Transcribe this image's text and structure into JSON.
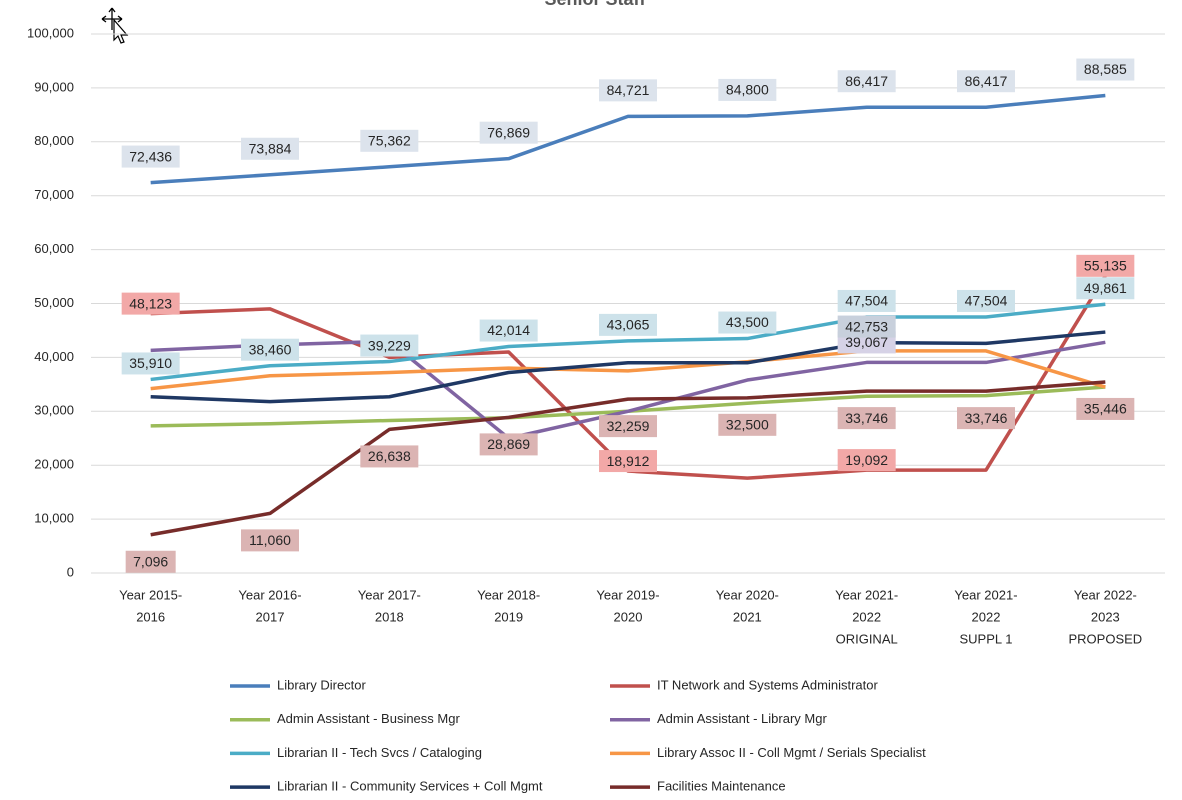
{
  "chart_data": {
    "type": "line",
    "title": "Senior Staff",
    "categories": [
      [
        "Year 2015-",
        "2016"
      ],
      [
        "Year 2016-",
        "2017"
      ],
      [
        "Year 2017-",
        "2018"
      ],
      [
        "Year 2018-",
        "2019"
      ],
      [
        "Year 2019-",
        "2020"
      ],
      [
        "Year 2020-",
        "2021"
      ],
      [
        "Year 2021-",
        "2022",
        "ORIGINAL"
      ],
      [
        "Year 2021-",
        "2022",
        "SUPPL 1"
      ],
      [
        "Year 2022-",
        "2023",
        "PROPOSED"
      ]
    ],
    "ylim": [
      0,
      100000
    ],
    "yticks": [
      0,
      {
        "value": 10000,
        "label": "10,000"
      },
      {
        "value": 20000,
        "label": "20,000"
      },
      {
        "value": 30000,
        "label": "30,000"
      },
      {
        "value": 40000,
        "label": "40,000"
      },
      {
        "value": 50000,
        "label": "50,000"
      },
      {
        "value": 60000,
        "label": "60,000"
      },
      {
        "value": 70000,
        "label": "70,000"
      },
      {
        "value": 80000,
        "label": "80,000"
      },
      {
        "value": 90000,
        "label": "90,000"
      },
      {
        "value": 100000,
        "label": "100,000"
      }
    ],
    "grid": true,
    "series": [
      {
        "name": "Library Director",
        "color": "#4a7ebb",
        "label_color": "#dce3ec",
        "values": [
          72436,
          73884,
          75362,
          76869,
          84721,
          84800,
          86417,
          86417,
          88585
        ],
        "value_labels": [
          "72,436",
          "73,884",
          "75,362",
          "76,869",
          "84,721",
          "84,800",
          "86,417",
          "86,417",
          "88,585"
        ]
      },
      {
        "name": "IT Network and Systems Administrator",
        "color": "#c0504d",
        "label_color": "#f2a8a7",
        "values": [
          48123,
          49000,
          40000,
          41000,
          18912,
          17600,
          19092,
          19092,
          55135
        ],
        "value_labels": [
          "48,123",
          null,
          null,
          null,
          "18,912",
          null,
          "19,092",
          null,
          "55,135"
        ]
      },
      {
        "name": "Admin Assistant - Business Mgr",
        "color": "#9bbb59",
        "values": [
          27300,
          27700,
          28300,
          28800,
          30000,
          31500,
          32800,
          32900,
          34500
        ]
      },
      {
        "name": "Admin Assistant - Library Mgr",
        "color": "#8064a2",
        "label_color": "#d6d2e6",
        "values": [
          41300,
          42300,
          43000,
          25000,
          30000,
          35800,
          39067,
          39067,
          42800
        ],
        "value_labels": [
          null,
          null,
          null,
          null,
          null,
          null,
          "39,067",
          null,
          null
        ]
      },
      {
        "name": "Librarian II - Tech Svcs / Cataloging",
        "color": "#4bacc6",
        "label_color": "#cde2ea",
        "values": [
          35910,
          38460,
          39229,
          42014,
          43065,
          43500,
          47504,
          47504,
          49861
        ],
        "value_labels": [
          "35,910",
          "38,460",
          "39,229",
          "42,014",
          "43,065",
          "43,500",
          "47,504",
          "47,504",
          "49,861"
        ]
      },
      {
        "name": "Library Assoc II - Coll Mgmt / Serials Specialist",
        "color": "#f79646",
        "values": [
          34200,
          36600,
          37200,
          38000,
          37500,
          39200,
          41200,
          41200,
          34500
        ]
      },
      {
        "name": "Librarian II - Community Services + Coll Mgmt",
        "color": "#1f3864",
        "label_color": "#c8d0dc",
        "values": [
          32700,
          31800,
          32700,
          37200,
          39000,
          39000,
          42753,
          42600,
          44700
        ],
        "value_labels": [
          null,
          null,
          null,
          null,
          null,
          null,
          "42,753",
          null,
          null
        ]
      },
      {
        "name": "Facilities Maintenance",
        "color": "#772c2a",
        "label_color": "#dbb4b3",
        "values": [
          7096,
          11060,
          26638,
          28869,
          32259,
          32500,
          33746,
          33746,
          35446
        ],
        "value_labels": [
          "7,096",
          "11,060",
          "26,638",
          "28,869",
          "32,259",
          "32,500",
          "33,746",
          "33,746",
          "35,446"
        ]
      }
    ]
  }
}
